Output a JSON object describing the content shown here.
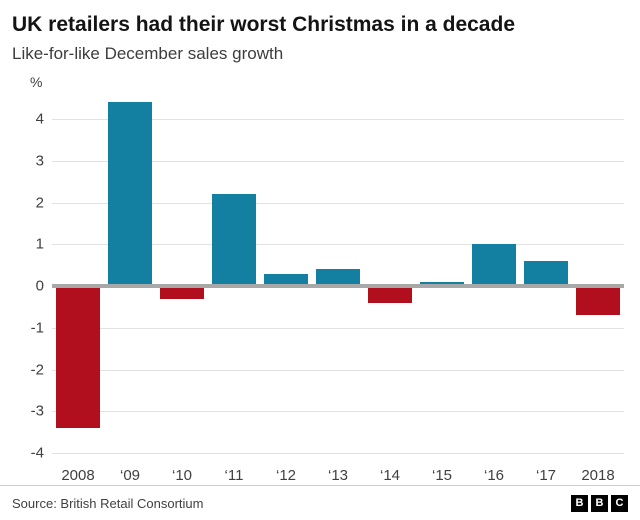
{
  "header": {
    "title": "UK retailers had their worst Christmas in a decade",
    "subtitle": "Like-for-like December sales growth"
  },
  "chart_data": {
    "type": "bar",
    "title": "UK retailers had their worst Christmas in a decade",
    "subtitle": "Like-for-like December sales growth",
    "unit_label": "%",
    "categories": [
      "2008",
      "‘09",
      "‘10",
      "‘11",
      "‘12",
      "‘13",
      "‘14",
      "‘15",
      "‘16",
      "‘17",
      "2018"
    ],
    "values": [
      -3.4,
      4.4,
      -0.3,
      2.2,
      0.3,
      0.4,
      -0.4,
      0.1,
      1.0,
      0.6,
      -0.7
    ],
    "ylim": [
      -4,
      4.5
    ],
    "yticks": [
      4,
      3,
      2,
      1,
      0,
      -1,
      -2,
      -3,
      -4
    ],
    "xlabel": "",
    "ylabel": "%",
    "grid": true,
    "legend": false,
    "colors": {
      "positive": "#1380A1",
      "negative": "#B10E1E",
      "zero_axis": "#a8a8a8",
      "gridline": "#e2e2e2"
    }
  },
  "footer": {
    "source": "Source: British Retail Consortium",
    "logo_letters": [
      "B",
      "B",
      "C"
    ]
  }
}
